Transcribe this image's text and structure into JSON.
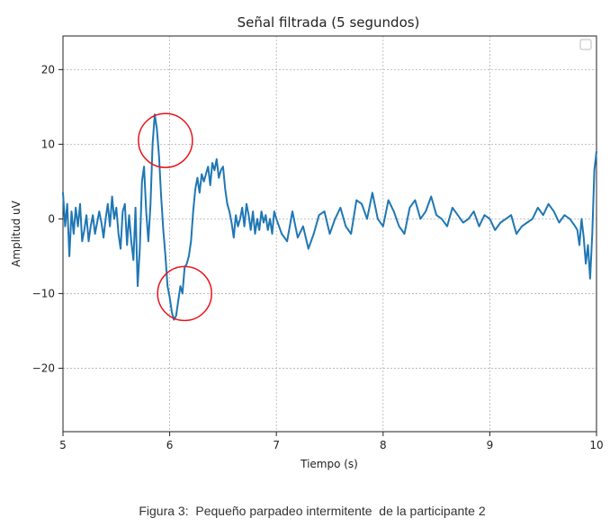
{
  "chart_data": {
    "type": "line",
    "title": "Señal filtrada (5 segundos)",
    "xlabel": "Tiempo (s)",
    "ylabel": "Amplitud uV",
    "xlim": [
      5,
      10
    ],
    "ylim": [
      -28.5,
      24.5
    ],
    "xticks": [
      "5",
      "6",
      "7",
      "8",
      "9",
      "10"
    ],
    "yticks": [
      "20",
      "10",
      "0",
      "−10",
      "−20"
    ],
    "grid": true,
    "legend": "top-right",
    "series": [
      {
        "color": "#1f77b4",
        "x": [
          5.0,
          5.02,
          5.04,
          5.06,
          5.08,
          5.1,
          5.12,
          5.14,
          5.16,
          5.18,
          5.2,
          5.22,
          5.24,
          5.26,
          5.28,
          5.3,
          5.32,
          5.34,
          5.36,
          5.38,
          5.4,
          5.42,
          5.44,
          5.46,
          5.48,
          5.5,
          5.52,
          5.54,
          5.56,
          5.58,
          5.6,
          5.62,
          5.64,
          5.66,
          5.68,
          5.7,
          5.72,
          5.74,
          5.76,
          5.78,
          5.8,
          5.82,
          5.84,
          5.86,
          5.88,
          5.9,
          5.92,
          5.94,
          5.96,
          5.98,
          6.0,
          6.02,
          6.04,
          6.06,
          6.08,
          6.1,
          6.12,
          6.14,
          6.16,
          6.18,
          6.2,
          6.22,
          6.24,
          6.26,
          6.28,
          6.3,
          6.32,
          6.34,
          6.36,
          6.38,
          6.4,
          6.42,
          6.44,
          6.46,
          6.48,
          6.5,
          6.52,
          6.54,
          6.56,
          6.58,
          6.6,
          6.62,
          6.64,
          6.66,
          6.68,
          6.7,
          6.72,
          6.74,
          6.76,
          6.78,
          6.8,
          6.82,
          6.84,
          6.86,
          6.88,
          6.9,
          6.92,
          6.94,
          6.96,
          6.98,
          7.0,
          7.05,
          7.1,
          7.15,
          7.2,
          7.25,
          7.3,
          7.35,
          7.4,
          7.45,
          7.5,
          7.55,
          7.6,
          7.65,
          7.7,
          7.75,
          7.8,
          7.85,
          7.9,
          7.95,
          8.0,
          8.05,
          8.1,
          8.15,
          8.2,
          8.25,
          8.3,
          8.35,
          8.4,
          8.45,
          8.5,
          8.55,
          8.6,
          8.65,
          8.7,
          8.75,
          8.8,
          8.85,
          8.9,
          8.95,
          9.0,
          9.05,
          9.1,
          9.15,
          9.2,
          9.25,
          9.3,
          9.35,
          9.4,
          9.45,
          9.5,
          9.55,
          9.6,
          9.65,
          9.7,
          9.75,
          9.8,
          9.82,
          9.84,
          9.86,
          9.88,
          9.9,
          9.92,
          9.94,
          9.96,
          9.98,
          10.0
        ],
        "y": [
          3.5,
          -1.0,
          2.0,
          -5.0,
          1.0,
          -2.0,
          1.5,
          -1.0,
          2.0,
          -3.0,
          -1.5,
          0.5,
          -3.0,
          -1.0,
          0.5,
          -2.0,
          -0.5,
          1.0,
          -0.5,
          -2.5,
          0.0,
          2.0,
          -1.0,
          3.0,
          0.0,
          1.5,
          -2.0,
          -4.0,
          1.0,
          2.0,
          -3.5,
          0.5,
          -3.0,
          -5.5,
          1.5,
          -9.0,
          -4.0,
          5.0,
          7.0,
          1.0,
          -3.0,
          2.0,
          10.0,
          14.0,
          12.0,
          8.5,
          3.0,
          -1.5,
          -5.0,
          -9.0,
          -10.5,
          -12.5,
          -13.5,
          -13.0,
          -11.0,
          -9.0,
          -10.0,
          -6.5,
          -6.0,
          -5.0,
          -3.0,
          1.0,
          4.0,
          5.5,
          3.5,
          6.0,
          5.0,
          6.0,
          7.0,
          4.5,
          7.5,
          6.5,
          8.0,
          5.5,
          6.5,
          7.0,
          4.0,
          2.0,
          1.0,
          -0.5,
          -2.5,
          0.5,
          -1.0,
          0.0,
          1.5,
          -1.0,
          2.0,
          0.5,
          -1.5,
          1.0,
          -2.0,
          0.0,
          -1.5,
          1.0,
          -0.5,
          0.5,
          -1.5,
          0.0,
          -2.0,
          1.0,
          0.0,
          -2.0,
          -3.0,
          1.0,
          -2.5,
          -1.0,
          -4.0,
          -2.0,
          0.5,
          1.0,
          -2.0,
          0.0,
          1.5,
          -1.0,
          -2.0,
          2.5,
          2.0,
          0.0,
          3.5,
          0.0,
          -1.0,
          2.5,
          1.0,
          -1.0,
          -2.0,
          1.5,
          2.5,
          0.0,
          1.0,
          3.0,
          0.5,
          0.0,
          -1.0,
          1.5,
          0.5,
          -0.5,
          0.0,
          1.0,
          -1.0,
          0.5,
          0.0,
          -1.5,
          -0.5,
          0.0,
          0.5,
          -2.0,
          -1.0,
          -0.5,
          0.0,
          1.5,
          0.5,
          2.0,
          1.0,
          -0.5,
          0.5,
          0.0,
          -1.0,
          -1.5,
          -3.5,
          0.0,
          -2.5,
          -6.0,
          -3.5,
          -8.0,
          -2.0,
          6.5,
          9.0
        ]
      }
    ],
    "annotations": [
      {
        "type": "circle",
        "x": 5.96,
        "y": 10.5
      },
      {
        "type": "circle",
        "x": 6.14,
        "y": -10.0
      }
    ]
  },
  "caption": "Figura 3:  Pequeño parpadeo intermitente  de la participante 2"
}
